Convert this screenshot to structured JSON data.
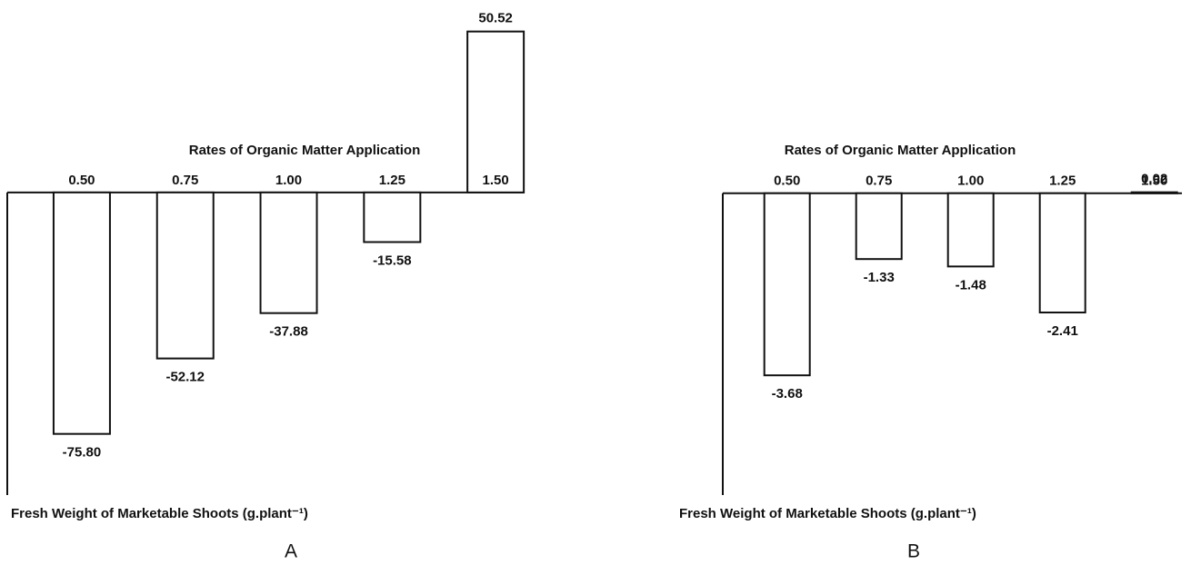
{
  "chart_data": [
    {
      "type": "bar",
      "panel": "A",
      "xlabel": "Rates of Organic Matter Application",
      "ylabel": "Fresh Weight of Marketable Shoots (g.plant⁻¹)",
      "categories": [
        "0.50",
        "0.75",
        "1.00",
        "1.25",
        "1.50"
      ],
      "values": [
        -75.8,
        -52.12,
        -37.88,
        -15.58,
        50.52
      ],
      "value_labels": [
        "-75.80",
        "-52.12",
        "-37.88",
        "-15.58",
        "50.52"
      ],
      "color": "#ffffff",
      "ylim": [
        -95,
        51
      ]
    },
    {
      "type": "bar",
      "panel": "B",
      "xlabel": "Rates of Organic Matter Application",
      "ylabel": "Fresh Weight of Marketable Shoots (g.plant⁻¹)",
      "categories": [
        "0.50",
        "0.75",
        "1.00",
        "1.25",
        "1.50"
      ],
      "values": [
        -3.68,
        -1.33,
        -1.48,
        -2.41,
        0.02
      ],
      "value_labels": [
        "-3.68",
        "-1.33",
        "-1.48",
        "-2.41",
        "0.02"
      ],
      "color": "#ffffff",
      "ylim": [
        -6.1,
        3.3
      ]
    }
  ]
}
